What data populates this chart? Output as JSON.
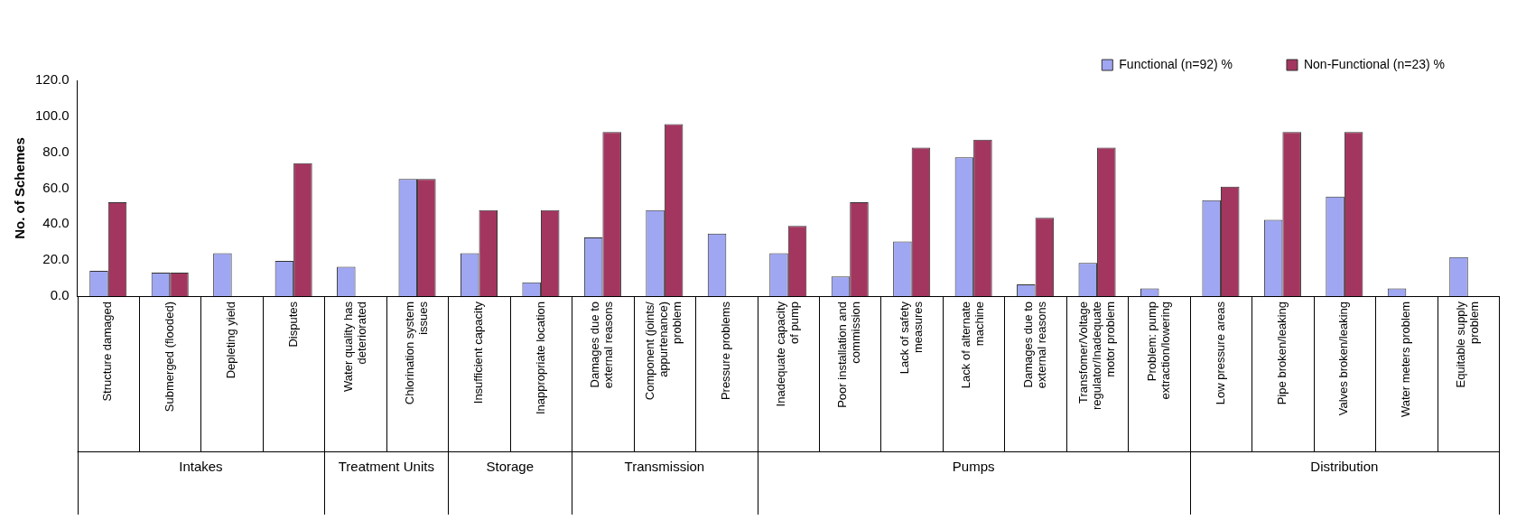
{
  "chart_data": {
    "type": "bar",
    "ylabel": "No. of Schemes",
    "categories": [
      "Structure damaged",
      "Submerged (flooded)",
      "Depleting yield",
      "Disputes",
      "Water quality has deteriorated",
      "Chlorination system issues",
      "Insufficient capacity",
      "Inappropriate location",
      "Damages due to external reasons",
      "Component (joints/ appurtenance) problem",
      "Pressure problems",
      "Inadequate capacity of pump",
      "Poor installation and commission",
      "Lack of safety measures",
      "Lack of alternate machine",
      "Damages due to external reasons",
      "Transfomer/Voltage regulator/Inadequate motor problem",
      "Problem: pump extraction/lowering",
      "Low pressure areas",
      "Pipe broken/leaking",
      "Valves broken/leaking",
      "Water meters problem",
      "Equitable supply problem"
    ],
    "series": [
      {
        "name": "Functional (n=92) %",
        "color": "#9fa6f2",
        "values": [
          14.1,
          13.0,
          23.9,
          19.6,
          16.3,
          65.2,
          23.9,
          7.6,
          32.6,
          47.8,
          34.8,
          23.9,
          10.9,
          30.4,
          77.2,
          6.5,
          18.5,
          4.3,
          53.3,
          42.4,
          55.4,
          4.3,
          21.7
        ]
      },
      {
        "name": "Non-Functional (n=23) %",
        "color": "#a3365f",
        "values": [
          52.2,
          13.0,
          0,
          73.9,
          0,
          65.2,
          47.8,
          47.8,
          91.3,
          95.7,
          0,
          39.1,
          52.2,
          82.6,
          87.0,
          43.5,
          82.6,
          0,
          60.9,
          91.3,
          91.3,
          0,
          0
        ]
      }
    ],
    "ylim": [
      0,
      120
    ],
    "yticks": [
      {
        "value": 0,
        "label": "0.0"
      },
      {
        "value": 20,
        "label": "20.0"
      },
      {
        "value": 40,
        "label": "40.0"
      },
      {
        "value": 60,
        "label": "60.0"
      },
      {
        "value": 80,
        "label": "80.0"
      },
      {
        "value": 100,
        "label": "100.0"
      },
      {
        "value": 120,
        "label": "120.0"
      }
    ],
    "grid": false,
    "legend": "top right",
    "annotations": [
      "Intakes",
      "Treatment Units",
      "Storage",
      "Transmission",
      "Pumps",
      "Distribution"
    ]
  }
}
